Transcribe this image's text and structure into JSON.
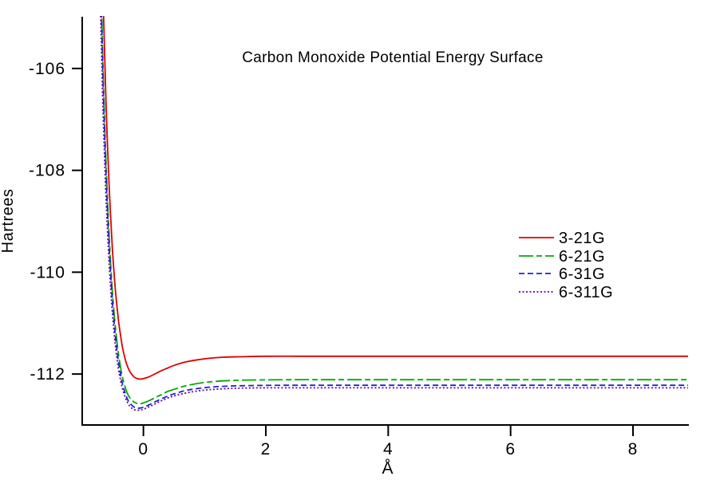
{
  "chart_data": {
    "type": "line",
    "title": "Carbon Monoxide Potential Energy Surface",
    "xlabel": "Å",
    "ylabel": "Hartrees",
    "xlim": [
      -1.0,
      8.9
    ],
    "ylim": [
      -113,
      -105
    ],
    "x_ticks": [
      0,
      2,
      4,
      6,
      8
    ],
    "y_ticks": [
      -106,
      -108,
      -110,
      -112
    ],
    "grid": false,
    "legend_position": "center-right",
    "axis_color": "#000000",
    "background_color": "#ffffff",
    "series": [
      {
        "name": "3-21G",
        "color": "#dd0000",
        "line_style": "solid",
        "asymptote_hartrees": -111.65,
        "minimum": {
          "x": -0.05,
          "E": -112.1
        },
        "points": [
          [
            -0.7,
            -102.9
          ],
          [
            -0.67,
            -104.2
          ],
          [
            -0.65,
            -105.0
          ],
          [
            -0.62,
            -106.3
          ],
          [
            -0.6,
            -107.08
          ],
          [
            -0.57,
            -108.02
          ],
          [
            -0.55,
            -108.57
          ],
          [
            -0.52,
            -109.26
          ],
          [
            -0.5,
            -109.67
          ],
          [
            -0.47,
            -110.17
          ],
          [
            -0.45,
            -110.46
          ],
          [
            -0.42,
            -110.81
          ],
          [
            -0.4,
            -111.02
          ],
          [
            -0.35,
            -111.42
          ],
          [
            -0.3,
            -111.7
          ],
          [
            -0.25,
            -111.88
          ],
          [
            -0.2,
            -111.99
          ],
          [
            -0.15,
            -112.06
          ],
          [
            -0.1,
            -112.09
          ],
          [
            -0.05,
            -112.1
          ],
          [
            0.0,
            -112.09
          ],
          [
            0.1,
            -112.05
          ],
          [
            0.2,
            -111.99
          ],
          [
            0.3,
            -111.93
          ],
          [
            0.4,
            -111.88
          ],
          [
            0.5,
            -111.83
          ],
          [
            0.7,
            -111.76
          ],
          [
            1.0,
            -111.7
          ],
          [
            1.3,
            -111.67
          ],
          [
            1.6,
            -111.66
          ],
          [
            2.0,
            -111.65
          ],
          [
            2.5,
            -111.65
          ],
          [
            3.0,
            -111.65
          ],
          [
            4.0,
            -111.65
          ],
          [
            5.0,
            -111.65
          ],
          [
            6.0,
            -111.65
          ],
          [
            7.0,
            -111.65
          ],
          [
            8.0,
            -111.65
          ],
          [
            8.9,
            -111.65
          ]
        ]
      },
      {
        "name": "6-21G",
        "color": "#00ab00",
        "line_style": "long-dash",
        "asymptote_hartrees": -112.11,
        "minimum": {
          "x": -0.07,
          "E": -112.58
        },
        "points": [
          [
            -0.7,
            -103.98
          ],
          [
            -0.67,
            -105.5
          ],
          [
            -0.65,
            -106.4
          ],
          [
            -0.62,
            -107.55
          ],
          [
            -0.6,
            -108.2
          ],
          [
            -0.57,
            -109.05
          ],
          [
            -0.55,
            -109.52
          ],
          [
            -0.52,
            -110.14
          ],
          [
            -0.5,
            -110.49
          ],
          [
            -0.47,
            -110.93
          ],
          [
            -0.45,
            -111.17
          ],
          [
            -0.42,
            -111.49
          ],
          [
            -0.4,
            -111.67
          ],
          [
            -0.35,
            -112.02
          ],
          [
            -0.3,
            -112.25
          ],
          [
            -0.25,
            -112.41
          ],
          [
            -0.2,
            -112.5
          ],
          [
            -0.15,
            -112.55
          ],
          [
            -0.1,
            -112.577
          ],
          [
            -0.05,
            -112.58
          ],
          [
            0.0,
            -112.567
          ],
          [
            0.1,
            -112.52
          ],
          [
            0.2,
            -112.458
          ],
          [
            0.3,
            -112.4
          ],
          [
            0.4,
            -112.34
          ],
          [
            0.5,
            -112.3
          ],
          [
            0.7,
            -112.23
          ],
          [
            1.0,
            -112.164
          ],
          [
            1.3,
            -112.135
          ],
          [
            1.6,
            -112.12
          ],
          [
            2.0,
            -112.114
          ],
          [
            2.5,
            -112.11
          ],
          [
            3.0,
            -112.11
          ],
          [
            4.0,
            -112.11
          ],
          [
            5.0,
            -112.11
          ],
          [
            6.0,
            -112.11
          ],
          [
            7.0,
            -112.11
          ],
          [
            8.0,
            -112.11
          ],
          [
            8.9,
            -112.11
          ]
        ]
      },
      {
        "name": "6-31G",
        "color": "#2222cc",
        "line_style": "dash",
        "asymptote_hartrees": -112.22,
        "minimum": {
          "x": -0.08,
          "E": -112.67
        },
        "points": [
          [
            -0.7,
            -104.2
          ],
          [
            -0.67,
            -105.7
          ],
          [
            -0.65,
            -106.64
          ],
          [
            -0.62,
            -107.77
          ],
          [
            -0.6,
            -108.42
          ],
          [
            -0.57,
            -109.25
          ],
          [
            -0.55,
            -109.73
          ],
          [
            -0.52,
            -110.33
          ],
          [
            -0.5,
            -110.67
          ],
          [
            -0.47,
            -111.1
          ],
          [
            -0.45,
            -111.35
          ],
          [
            -0.42,
            -111.65
          ],
          [
            -0.4,
            -111.82
          ],
          [
            -0.35,
            -112.15
          ],
          [
            -0.3,
            -112.37
          ],
          [
            -0.25,
            -112.52
          ],
          [
            -0.2,
            -112.6
          ],
          [
            -0.15,
            -112.65
          ],
          [
            -0.1,
            -112.669
          ],
          [
            -0.05,
            -112.667
          ],
          [
            0.0,
            -112.653
          ],
          [
            0.1,
            -112.6
          ],
          [
            0.2,
            -112.54
          ],
          [
            0.3,
            -112.485
          ],
          [
            0.4,
            -112.43
          ],
          [
            0.5,
            -112.39
          ],
          [
            0.7,
            -112.32
          ],
          [
            1.0,
            -112.267
          ],
          [
            1.3,
            -112.24
          ],
          [
            1.6,
            -112.229
          ],
          [
            2.0,
            -112.222
          ],
          [
            2.5,
            -112.22
          ],
          [
            3.0,
            -112.22
          ],
          [
            4.0,
            -112.22
          ],
          [
            5.0,
            -112.22
          ],
          [
            6.0,
            -112.22
          ],
          [
            7.0,
            -112.22
          ],
          [
            8.0,
            -112.22
          ],
          [
            8.9,
            -112.22
          ]
        ]
      },
      {
        "name": "6-311G",
        "color": "#6600aa",
        "line_style": "dot",
        "asymptote_hartrees": -112.27,
        "minimum": {
          "x": -0.09,
          "E": -112.71
        },
        "points": [
          [
            -0.7,
            -104.9
          ],
          [
            -0.67,
            -106.4
          ],
          [
            -0.65,
            -107.2
          ],
          [
            -0.62,
            -108.27
          ],
          [
            -0.6,
            -108.85
          ],
          [
            -0.57,
            -109.61
          ],
          [
            -0.55,
            -110.04
          ],
          [
            -0.52,
            -110.59
          ],
          [
            -0.5,
            -110.9
          ],
          [
            -0.47,
            -111.3
          ],
          [
            -0.45,
            -111.52
          ],
          [
            -0.42,
            -111.8
          ],
          [
            -0.4,
            -111.96
          ],
          [
            -0.35,
            -112.25
          ],
          [
            -0.3,
            -112.45
          ],
          [
            -0.25,
            -112.58
          ],
          [
            -0.2,
            -112.66
          ],
          [
            -0.15,
            -112.7
          ],
          [
            -0.1,
            -112.71
          ],
          [
            -0.05,
            -112.705
          ],
          [
            0.0,
            -112.69
          ],
          [
            0.1,
            -112.64
          ],
          [
            0.2,
            -112.58
          ],
          [
            0.3,
            -112.52
          ],
          [
            0.4,
            -112.47
          ],
          [
            0.5,
            -112.43
          ],
          [
            0.7,
            -112.37
          ],
          [
            1.0,
            -112.315
          ],
          [
            1.3,
            -112.29
          ],
          [
            1.6,
            -112.276
          ],
          [
            2.0,
            -112.271
          ],
          [
            2.5,
            -112.27
          ],
          [
            3.0,
            -112.27
          ],
          [
            4.0,
            -112.27
          ],
          [
            5.0,
            -112.27
          ],
          [
            6.0,
            -112.27
          ],
          [
            7.0,
            -112.27
          ],
          [
            8.0,
            -112.27
          ],
          [
            8.9,
            -112.27
          ]
        ]
      }
    ]
  }
}
